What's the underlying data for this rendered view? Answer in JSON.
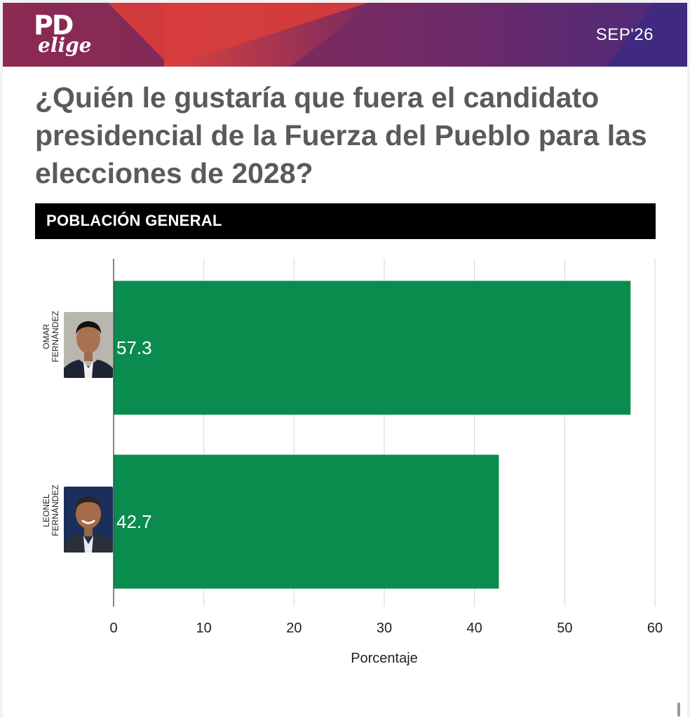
{
  "header": {
    "logo_main": "PD",
    "logo_sub": "elige",
    "date": "SEP'26"
  },
  "question": "¿Quién le gustaría que fuera el candidato presidencial de la Fuerza del Pueblo para las elecciones de 2028?",
  "segment": "POBLACIÓN GENERAL",
  "colors": {
    "bar": "#0a8c4e",
    "subhead_bg": "#000000",
    "title": "#5a5a5a"
  },
  "candidates": [
    {
      "name_line1": "OMAR",
      "name_line2": "FERNÁNDEZ",
      "portrait": "omar-fernandez-portrait"
    },
    {
      "name_line1": "LEONEL",
      "name_line2": "FERNÁNDEZ",
      "portrait": "leonel-fernandez-portrait"
    }
  ],
  "chart_data": {
    "type": "bar",
    "orientation": "horizontal",
    "categories": [
      "OMAR FERNÁNDEZ",
      "LEONEL FERNÁNDEZ"
    ],
    "values": [
      57.3,
      42.7
    ],
    "value_labels": [
      "57.3",
      "42.7"
    ],
    "xlabel": "Porcentaje",
    "xlim": [
      0,
      60
    ],
    "xticks": [
      "0",
      "10",
      "20",
      "30",
      "40",
      "50",
      "60"
    ],
    "grid": true
  }
}
